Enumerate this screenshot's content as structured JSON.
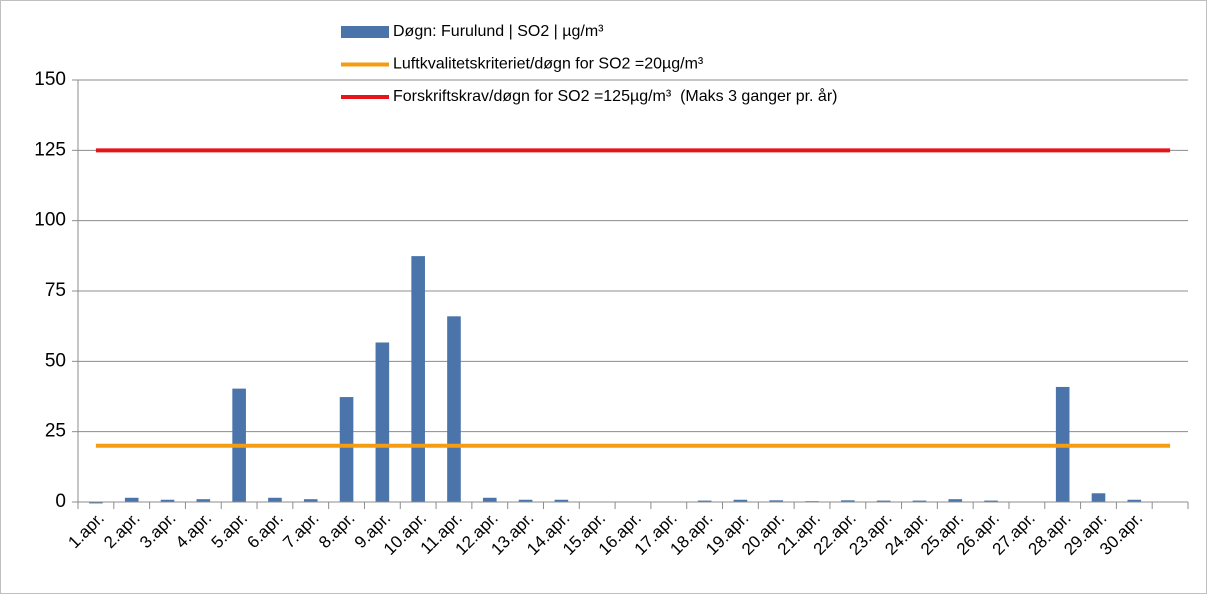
{
  "chart_data": {
    "type": "bar",
    "categories": [
      "1.apr.",
      "2.apr.",
      "3.apr.",
      "4.apr.",
      "5.apr.",
      "6.apr.",
      "7.apr.",
      "8.apr.",
      "9.apr.",
      "10.apr.",
      "11.apr.",
      "12.apr.",
      "13.apr.",
      "14.apr.",
      "15.apr.",
      "16.apr.",
      "17.apr.",
      "18.apr.",
      "19.apr.",
      "20.apr.",
      "21.apr.",
      "22.apr.",
      "23.apr.",
      "24.apr.",
      "25.apr.",
      "26.apr.",
      "27.apr.",
      "28.apr.",
      "29.apr.",
      "30.apr.",
      null
    ],
    "series": [
      {
        "name": "Døgn: Furulund | SO2 | µg/m³",
        "type": "bar",
        "color": "#4a74aa",
        "values": [
          -0.5,
          1.5,
          0.8,
          1,
          40.3,
          1.5,
          1,
          37.3,
          56.7,
          87.4,
          66,
          1.5,
          0.8,
          0.8,
          null,
          null,
          null,
          0.5,
          0.8,
          0.6,
          0.3,
          0.6,
          0.5,
          0.5,
          1,
          0.5,
          null,
          40.9,
          3.1,
          0.8,
          null
        ]
      },
      {
        "name": "Luftkvalitetskriteriet/døgn for SO2 =20µg/m³",
        "type": "line",
        "color": "#f59d12",
        "values": [
          20,
          20,
          20,
          20,
          20,
          20,
          20,
          20,
          20,
          20,
          20,
          20,
          20,
          20,
          20,
          20,
          20,
          20,
          20,
          20,
          20,
          20,
          20,
          20,
          20,
          20,
          20,
          20,
          20,
          20,
          20
        ]
      },
      {
        "name": "Forskriftskrav/døgn for SO2 =125µg/m³  (Maks 3 ganger pr. år)",
        "type": "line",
        "color": "#e8141b",
        "values": [
          125,
          125,
          125,
          125,
          125,
          125,
          125,
          125,
          125,
          125,
          125,
          125,
          125,
          125,
          125,
          125,
          125,
          125,
          125,
          125,
          125,
          125,
          125,
          125,
          125,
          125,
          125,
          125,
          125,
          125,
          125
        ]
      }
    ],
    "ylim": [
      0,
      150
    ],
    "yticks": [
      0,
      25,
      50,
      75,
      100,
      125,
      150
    ],
    "grid": true
  }
}
